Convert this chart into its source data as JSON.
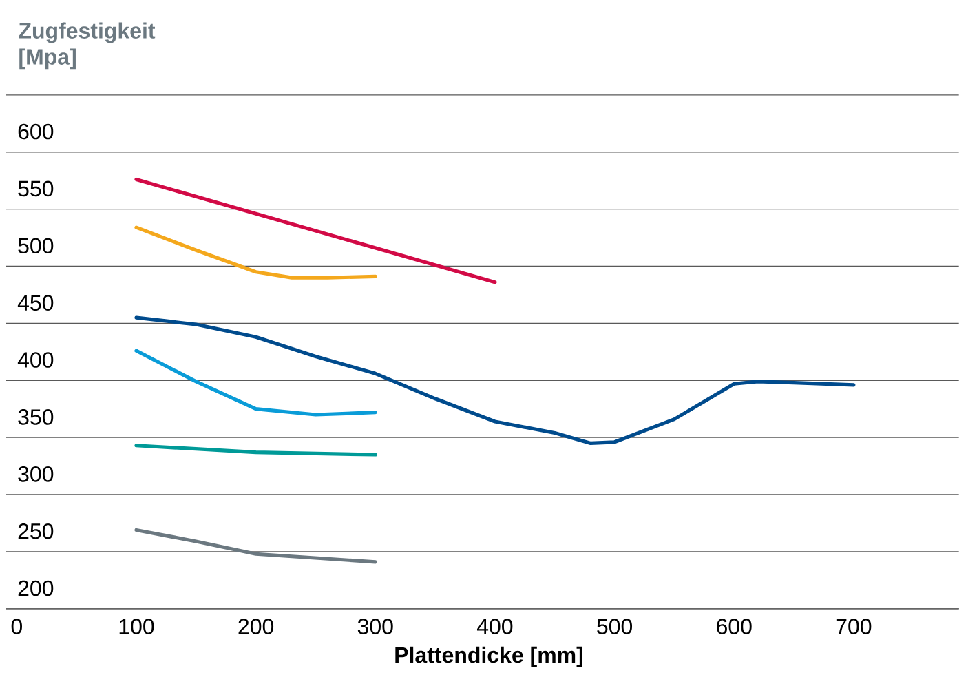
{
  "chart_data": {
    "type": "line",
    "xlabel": "Plattendicke [mm]",
    "ylabel": "Zugfestigkeit [Mpa]",
    "xlim": [
      -9,
      788
    ],
    "ylim": [
      200,
      650
    ],
    "xticks": [
      0,
      100,
      200,
      300,
      400,
      500,
      600,
      700
    ],
    "yticks": [
      200,
      250,
      300,
      350,
      400,
      450,
      500,
      550,
      600,
      {
        "value": 650,
        "label": null
      }
    ],
    "grid": "y",
    "marker": "none",
    "line_style": "solid",
    "series": [
      {
        "color": "#d20a46",
        "x": [
          100,
          400
        ],
        "values": [
          576,
          486
        ]
      },
      {
        "color": "#f4a81d",
        "x": [
          100,
          150,
          200,
          230,
          260,
          300
        ],
        "values": [
          534,
          514,
          495,
          490,
          490,
          491
        ]
      },
      {
        "color": "#004b8d",
        "x": [
          100,
          150,
          200,
          250,
          300,
          350,
          400,
          450,
          480,
          500,
          550,
          600,
          620,
          650,
          700
        ],
        "values": [
          455,
          449,
          438,
          421,
          406,
          384,
          364,
          354,
          345,
          346,
          366,
          397,
          399,
          398,
          396
        ]
      },
      {
        "color": "#0a9cd8",
        "x": [
          100,
          150,
          200,
          250,
          300
        ],
        "values": [
          426,
          399,
          375,
          370,
          372
        ]
      },
      {
        "color": "#009a98",
        "x": [
          100,
          200,
          300
        ],
        "values": [
          343,
          337,
          335
        ]
      },
      {
        "color": "#6b7880",
        "x": [
          100,
          150,
          200,
          300
        ],
        "values": [
          269,
          259,
          248,
          241
        ]
      }
    ]
  }
}
